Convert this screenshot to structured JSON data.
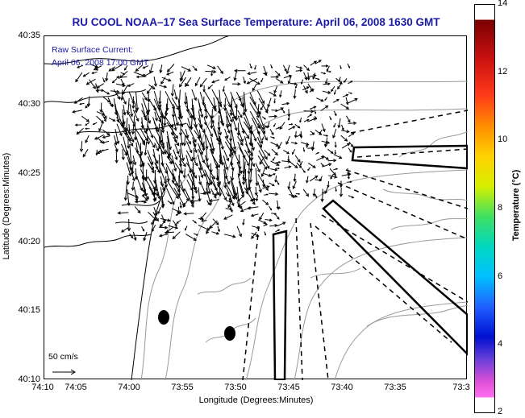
{
  "title": "RU COOL  NOAA–17  Sea Surface Temperature:  April 06, 2008 1630 GMT",
  "current_label": {
    "line1": "Raw Surface Current:",
    "line2": "April 06, 2008 17:00 GMT"
  },
  "scale_label": "50 cm/s",
  "axes": {
    "xlabel": "Longitude (Degrees:Minutes)",
    "ylabel": "Latitude (Degrees:Minutes)",
    "x_ticks": [
      "74:10",
      "74:05",
      "74:00",
      "73:55",
      "73:50",
      "73:45",
      "73:40",
      "73:35",
      "73:3"
    ],
    "y_ticks": [
      "40:35",
      "40:30",
      "40:25",
      "40:20",
      "40:15",
      "40:10"
    ]
  },
  "colorbar": {
    "label": "Temperature (°C)",
    "min": 2,
    "max": 14,
    "ticks": [
      "14",
      "12",
      "10",
      "8",
      "6",
      "4",
      "2"
    ]
  },
  "colors": {
    "title": "#1a1aa6",
    "land_outline": "#000000",
    "bathymetry": "#9a9a9a",
    "vectors": "#000000"
  }
}
